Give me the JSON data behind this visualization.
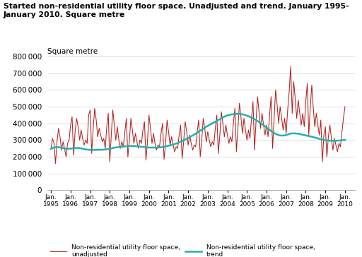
{
  "title": "Started non-residential utility floor space. Unadjusted and trend. January 1995-\nJanuary 2010. Square metre",
  "ylabel": "Square metre",
  "unadj_color": "#b22222",
  "trend_color": "#20b2aa",
  "ylim": [
    0,
    800000
  ],
  "yticks": [
    0,
    100000,
    200000,
    300000,
    400000,
    500000,
    600000,
    700000,
    800000
  ],
  "unadjusted": [
    250000,
    310000,
    280000,
    160000,
    290000,
    370000,
    320000,
    240000,
    290000,
    250000,
    200000,
    280000,
    300000,
    390000,
    440000,
    210000,
    350000,
    430000,
    380000,
    300000,
    360000,
    310000,
    270000,
    300000,
    280000,
    450000,
    480000,
    220000,
    370000,
    490000,
    420000,
    320000,
    370000,
    330000,
    290000,
    310000,
    250000,
    380000,
    460000,
    170000,
    330000,
    480000,
    390000,
    300000,
    380000,
    300000,
    250000,
    290000,
    260000,
    350000,
    430000,
    200000,
    300000,
    430000,
    360000,
    280000,
    340000,
    290000,
    250000,
    300000,
    280000,
    360000,
    410000,
    180000,
    290000,
    450000,
    370000,
    280000,
    340000,
    280000,
    240000,
    270000,
    260000,
    340000,
    400000,
    185000,
    280000,
    420000,
    350000,
    270000,
    320000,
    270000,
    230000,
    260000,
    250000,
    330000,
    390000,
    190000,
    290000,
    410000,
    350000,
    270000,
    330000,
    280000,
    240000,
    270000,
    260000,
    350000,
    420000,
    200000,
    300000,
    430000,
    370000,
    290000,
    350000,
    300000,
    260000,
    290000,
    270000,
    370000,
    450000,
    220000,
    330000,
    470000,
    400000,
    320000,
    390000,
    330000,
    280000,
    320000,
    290000,
    400000,
    490000,
    230000,
    370000,
    520000,
    440000,
    340000,
    430000,
    360000,
    300000,
    360000,
    310000,
    430000,
    530000,
    240000,
    410000,
    560000,
    470000,
    370000,
    460000,
    390000,
    330000,
    390000,
    320000,
    450000,
    560000,
    250000,
    430000,
    600000,
    510000,
    400000,
    500000,
    430000,
    360000,
    430000,
    340000,
    480000,
    590000,
    740000,
    460000,
    650000,
    550000,
    430000,
    540000,
    460000,
    390000,
    460000,
    380000,
    530000,
    640000,
    330000,
    500000,
    630000,
    490000,
    380000,
    460000,
    390000,
    330000,
    420000,
    170000,
    330000,
    380000,
    200000,
    320000,
    390000,
    310000,
    240000,
    310000,
    270000,
    230000,
    280000,
    260000,
    350000,
    430000,
    500000
  ],
  "trend": [
    248000,
    252000,
    255000,
    257000,
    258000,
    258000,
    256000,
    254000,
    252000,
    250000,
    249000,
    248000,
    248000,
    249000,
    250000,
    251000,
    252000,
    253000,
    253000,
    252000,
    250000,
    248000,
    246000,
    244000,
    243000,
    242000,
    241000,
    241000,
    241000,
    241000,
    241000,
    242000,
    242000,
    242000,
    242000,
    243000,
    244000,
    245000,
    246000,
    248000,
    250000,
    252000,
    254000,
    256000,
    257000,
    258000,
    259000,
    260000,
    261000,
    262000,
    263000,
    264000,
    265000,
    265000,
    265000,
    265000,
    264000,
    263000,
    262000,
    261000,
    260000,
    259000,
    258000,
    257000,
    256000,
    255000,
    255000,
    255000,
    255000,
    255000,
    255000,
    255000,
    256000,
    257000,
    258000,
    260000,
    262000,
    264000,
    266000,
    268000,
    270000,
    273000,
    276000,
    279000,
    282000,
    286000,
    290000,
    294000,
    298000,
    303000,
    308000,
    313000,
    318000,
    323000,
    328000,
    333000,
    338000,
    344000,
    350000,
    356000,
    362000,
    368000,
    374000,
    380000,
    385000,
    390000,
    395000,
    400000,
    405000,
    410000,
    415000,
    420000,
    425000,
    430000,
    435000,
    440000,
    444000,
    447000,
    450000,
    452000,
    454000,
    455000,
    456000,
    457000,
    457000,
    457000,
    456000,
    454000,
    452000,
    449000,
    446000,
    443000,
    439000,
    435000,
    430000,
    425000,
    420000,
    414000,
    408000,
    402000,
    396000,
    389000,
    382000,
    375000,
    368000,
    361000,
    354000,
    348000,
    342000,
    337000,
    333000,
    330000,
    328000,
    327000,
    327000,
    328000,
    330000,
    333000,
    336000,
    339000,
    340000,
    340000,
    340000,
    339000,
    338000,
    336000,
    334000,
    332000,
    330000,
    328000,
    326000,
    324000,
    322000,
    320000,
    318000,
    315000,
    313000,
    310000,
    307000,
    305000,
    303000,
    301000,
    299000,
    298000,
    297000,
    296000,
    296000,
    296000,
    296000,
    296000,
    297000,
    297000,
    298000,
    299000,
    300000,
    301000
  ],
  "legend1": "Non-residential utility floor space,\nunadjusted",
  "legend2": "Non-residential utility floor space,\ntrend",
  "bg_color": "#ffffff",
  "grid_color": "#d0d0d0"
}
